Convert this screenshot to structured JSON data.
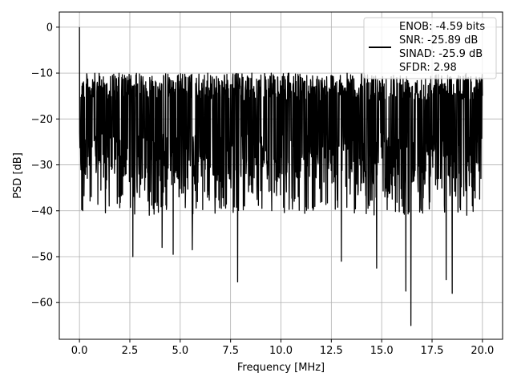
{
  "chart_data": {
    "type": "line",
    "title": "",
    "xlabel": "Frequency [MHz]",
    "ylabel": "PSD [dB]",
    "xlim": [
      -1.0,
      21.0
    ],
    "ylim": [
      -68.0,
      3.3
    ],
    "grid": true,
    "x_ticks": [
      0.0,
      2.5,
      5.0,
      7.5,
      10.0,
      12.5,
      15.0,
      17.5,
      20.0
    ],
    "x_tick_labels": [
      "0.0",
      "2.5",
      "5.0",
      "7.5",
      "10.0",
      "12.5",
      "15.0",
      "17.5",
      "20.0"
    ],
    "y_ticks": [
      0,
      -10,
      -20,
      -30,
      -40,
      -50,
      -60
    ],
    "y_tick_labels": [
      "0",
      "−10",
      "−20",
      "−30",
      "−40",
      "−50",
      "−60"
    ],
    "legend": {
      "placement": "upper-right",
      "entries": [
        "ENOB: -4.59 bits",
        "SNR: -25.89 dB",
        "SINAD: -25.9 dB",
        "SFDR: 2.98"
      ]
    },
    "series": [
      {
        "color": "#000000",
        "x_range": [
          0.0,
          20.0
        ],
        "peak": {
          "x": 0.0,
          "y": 0.0
        },
        "notable_dips": [
          {
            "x": 2.65,
            "y": -50.0
          },
          {
            "x": 4.1,
            "y": -48.0
          },
          {
            "x": 4.65,
            "y": -49.5
          },
          {
            "x": 5.6,
            "y": -48.5
          },
          {
            "x": 7.85,
            "y": -55.5
          },
          {
            "x": 13.0,
            "y": -51.0
          },
          {
            "x": 14.75,
            "y": -52.5
          },
          {
            "x": 16.2,
            "y": -57.5
          },
          {
            "x": 16.45,
            "y": -65.0
          },
          {
            "x": 18.2,
            "y": -55.0
          },
          {
            "x": 18.5,
            "y": -58.0
          }
        ],
        "typical_upper": -10.0,
        "typical_lower": -33.0,
        "typical_center": -20.0
      }
    ]
  }
}
